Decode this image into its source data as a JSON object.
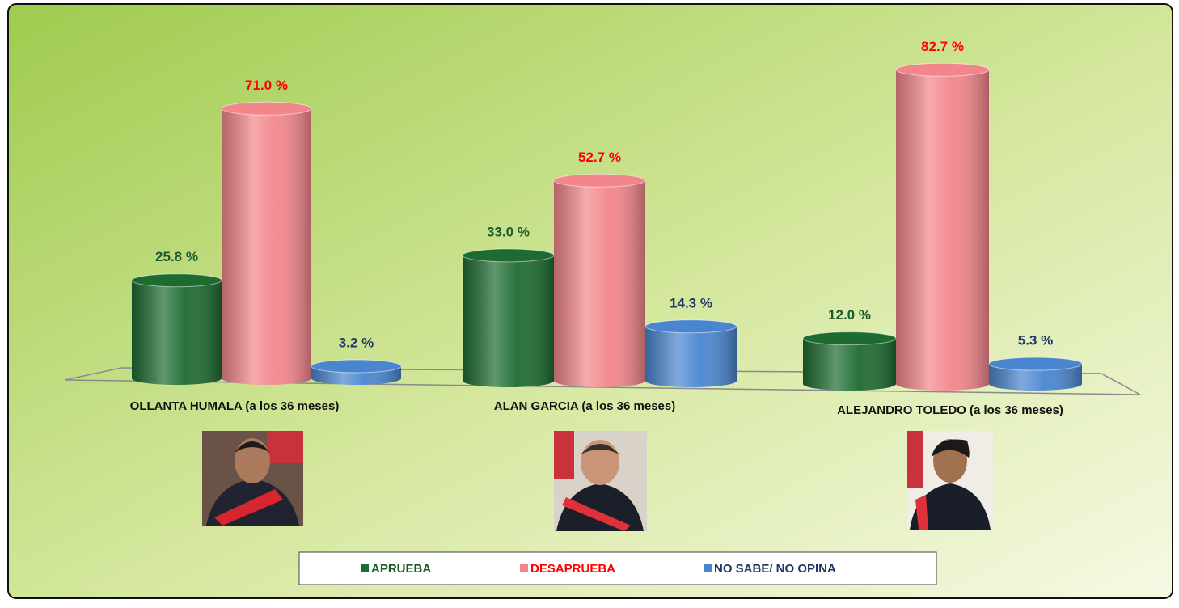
{
  "chart_data": {
    "type": "bar",
    "categories": [
      "OLLANTA HUMALA (a los 36 meses)",
      "ALAN GARCIA (a los 36 meses)",
      "ALEJANDRO TOLEDO (a los 36 meses)"
    ],
    "series": [
      {
        "name": "APRUEBA",
        "color": "#1d6b30",
        "values": [
          25.8,
          33.0,
          12.0
        ],
        "value_labels": [
          "25.8 %",
          "33.0 %",
          "12.0 %"
        ]
      },
      {
        "name": "DESAPRUEBA",
        "color": "#f2868b",
        "values": [
          71.0,
          52.7,
          82.7
        ],
        "value_labels": [
          "71.0 %",
          "52.7 %",
          "82.7 %"
        ]
      },
      {
        "name": "NO SABE/ NO OPINA",
        "color": "#4a86d0",
        "values": [
          3.2,
          14.3,
          5.3
        ],
        "value_labels": [
          "3.2 %",
          "14.3 %",
          "5.3 %"
        ]
      }
    ]
  }
}
